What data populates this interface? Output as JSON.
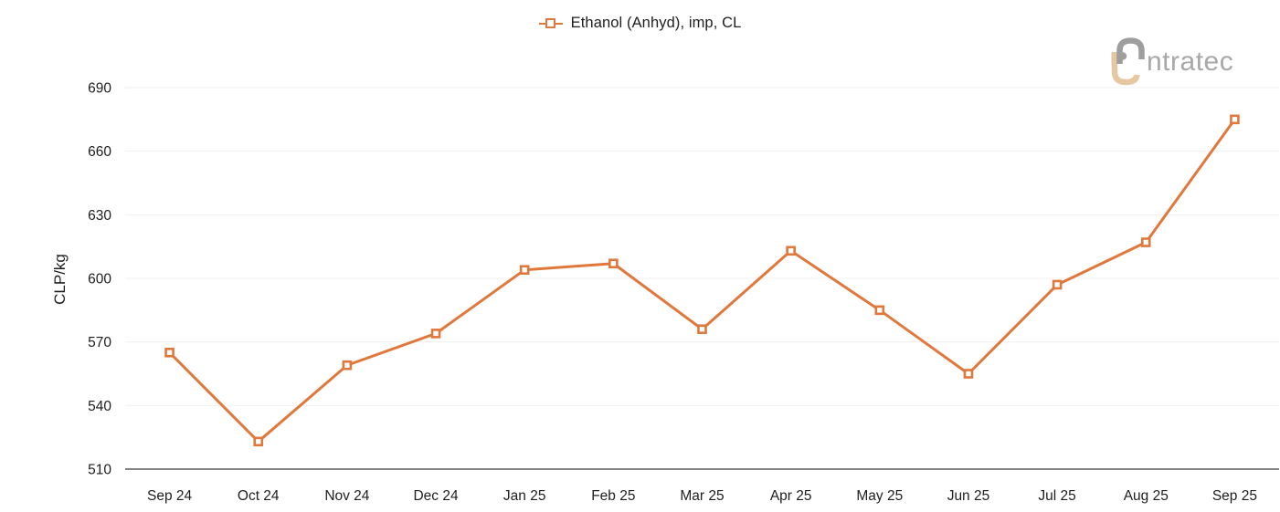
{
  "legend": {
    "label": "Ethanol (Anhyd), imp, CL"
  },
  "logo": {
    "text": "ntratec",
    "wordmark": "intratec"
  },
  "colors": {
    "accent": "#E0783C",
    "marker_fill": "#FFFFFF",
    "grid": "#F0F0F0",
    "axis_line": "#5B5B5B",
    "tick_text": "#1E1E1E",
    "legend_text": "#1E1E1E",
    "logo_gray": "#9E9E9E",
    "logo_tan": "#E6C7A2",
    "logo_text": "#A8A8A8"
  },
  "chart_data": {
    "type": "line",
    "title": "",
    "ylabel": "CLP/kg",
    "xlabel": "",
    "ylim": [
      510,
      690
    ],
    "yticks": [
      510,
      540,
      570,
      600,
      630,
      660,
      690
    ],
    "grid": true,
    "legend_position": "top-center",
    "categories": [
      "Sep 24",
      "Oct 24",
      "Nov 24",
      "Dec 24",
      "Jan 25",
      "Feb 25",
      "Mar 25",
      "Apr 25",
      "May 25",
      "Jun 25",
      "Jul 25",
      "Aug 25",
      "Sep 25"
    ],
    "series": [
      {
        "name": "Ethanol (Anhyd), imp, CL",
        "marker": "open-square",
        "color": "#E0783C",
        "values": [
          565,
          523,
          559,
          574,
          604,
          607,
          576,
          613,
          585,
          555,
          597,
          617,
          675
        ]
      }
    ]
  }
}
